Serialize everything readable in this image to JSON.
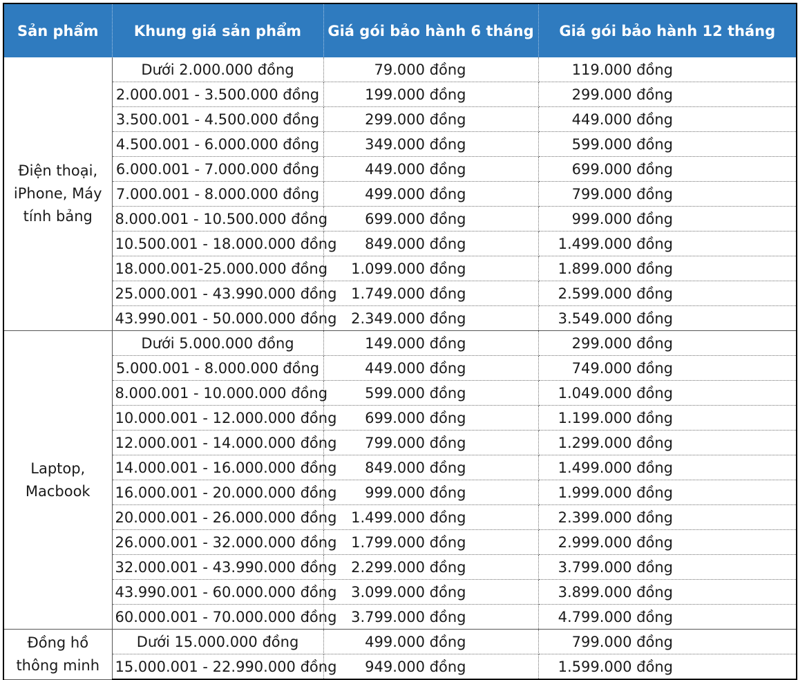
{
  "table": {
    "headers": {
      "product": "Sản phẩm",
      "price_range": "Khung giá sản phẩm",
      "price_6m": "Giá gói bảo hành 6 tháng",
      "price_12m": "Giá gói bảo hành 12 tháng"
    },
    "groups": [
      {
        "category": "Điện thoại, iPhone, Máy tính bảng",
        "rows": [
          {
            "range": "Dưới 2.000.000 đồng",
            "p6": "79.000 đồng",
            "p12": "119.000 đồng"
          },
          {
            "range": "2.000.001 - 3.500.000 đồng",
            "p6": "199.000 đồng",
            "p12": "299.000 đồng"
          },
          {
            "range": "3.500.001 - 4.500.000 đồng",
            "p6": "299.000 đồng",
            "p12": "449.000 đồng"
          },
          {
            "range": "4.500.001 - 6.000.000 đồng",
            "p6": "349.000 đồng",
            "p12": "599.000 đồng"
          },
          {
            "range": "6.000.001 - 7.000.000 đồng",
            "p6": "449.000 đồng",
            "p12": "699.000 đồng"
          },
          {
            "range": "7.000.001 - 8.000.000 đồng",
            "p6": "499.000 đồng",
            "p12": "799.000 đồng"
          },
          {
            "range": "8.000.001 - 10.500.000 đồng",
            "p6": "699.000 đồng",
            "p12": "999.000 đồng"
          },
          {
            "range": "10.500.001 - 18.000.000 đồng",
            "p6": "849.000 đồng",
            "p12": "1.499.000 đồng"
          },
          {
            "range": "18.000.001-25.000.000 đồng",
            "p6": "1.099.000 đồng",
            "p12": "1.899.000 đồng"
          },
          {
            "range": "25.000.001 - 43.990.000 đồng",
            "p6": "1.749.000 đồng",
            "p12": "2.599.000 đồng"
          },
          {
            "range": "43.990.001 - 50.000.000 đồng",
            "p6": "2.349.000 đồng",
            "p12": "3.549.000 đồng"
          }
        ]
      },
      {
        "category": "Laptop, Macbook",
        "rows": [
          {
            "range": "Dưới 5.000.000 đồng",
            "p6": "149.000 đồng",
            "p12": "299.000 đồng"
          },
          {
            "range": "5.000.001 - 8.000.000 đồng",
            "p6": "449.000 đồng",
            "p12": "749.000 đồng"
          },
          {
            "range": "8.000.001 - 10.000.000 đồng",
            "p6": "599.000 đồng",
            "p12": "1.049.000 đồng"
          },
          {
            "range": "10.000.001 - 12.000.000 đồng",
            "p6": "699.000 đồng",
            "p12": "1.199.000 đồng"
          },
          {
            "range": "12.000.001 - 14.000.000 đồng",
            "p6": "799.000 đồng",
            "p12": "1.299.000 đồng"
          },
          {
            "range": "14.000.001 - 16.000.000 đồng",
            "p6": "849.000 đồng",
            "p12": "1.499.000 đồng"
          },
          {
            "range": "16.000.001 - 20.000.000 đồng",
            "p6": "999.000 đồng",
            "p12": "1.999.000 đồng"
          },
          {
            "range": "20.000.001 - 26.000.000 đồng",
            "p6": "1.499.000 đồng",
            "p12": "2.399.000 đồng"
          },
          {
            "range": "26.000.001 - 32.000.000 đồng",
            "p6": "1.799.000 đồng",
            "p12": "2.999.000 đồng"
          },
          {
            "range": "32.000.001 - 43.990.000 đồng",
            "p6": "2.299.000 đồng",
            "p12": "3.799.000 đồng"
          },
          {
            "range": "43.990.001 - 60.000.000 đồng",
            "p6": "3.099.000 đồng",
            "p12": "3.899.000 đồng"
          },
          {
            "range": "60.000.001 - 70.000.000 đồng",
            "p6": "3.799.000 đồng",
            "p12": "4.799.000 đồng"
          }
        ]
      },
      {
        "category": "Đồng hồ thông minh",
        "rows": [
          {
            "range": "Dưới 15.000.000 đồng",
            "p6": "499.000 đồng",
            "p12": "799.000 đồng"
          },
          {
            "range": "15.000.001 - 22.990.000 đồng",
            "p6": "949.000 đồng",
            "p12": "1.599.000 đồng"
          }
        ]
      }
    ],
    "colors": {
      "header_bg": "#2f7bbf",
      "header_text": "#ffffff",
      "body_text": "#1a1a1a"
    }
  }
}
